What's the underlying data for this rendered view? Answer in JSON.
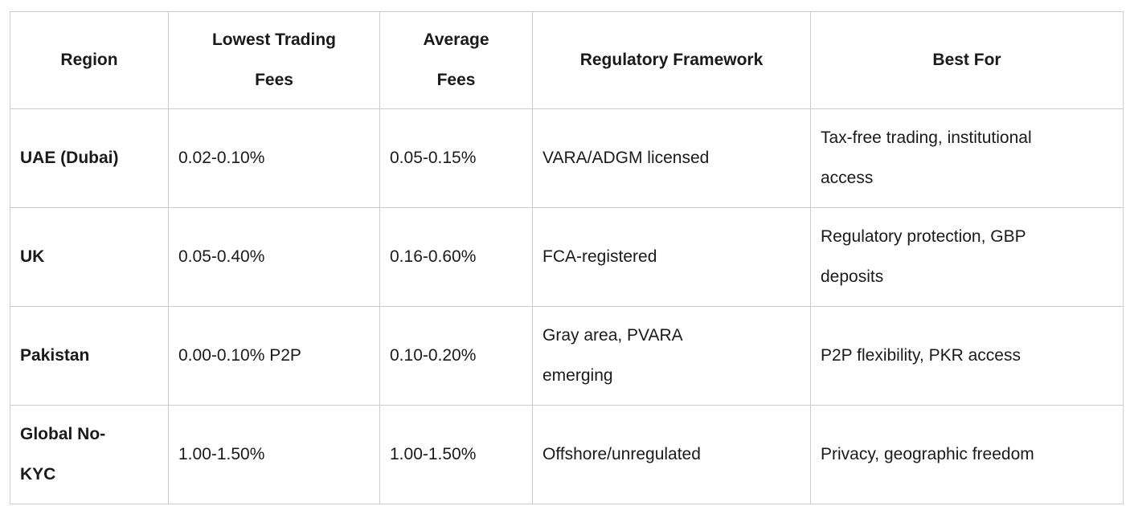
{
  "colors": {
    "background": "#ffffff",
    "border": "#cccccc",
    "text": "#1a1a1a"
  },
  "table": {
    "headers": [
      "Region",
      "Lowest Trading\nFees",
      "Average\nFees",
      "Regulatory Framework",
      "Best For"
    ],
    "rows": [
      {
        "cells": [
          "UAE (Dubai)",
          "0.02-0.10%",
          "0.05-0.15%",
          "VARA/ADGM licensed",
          "Tax-free trading, institutional\naccess"
        ]
      },
      {
        "cells": [
          "UK",
          "0.05-0.40%",
          "0.16-0.60%",
          "FCA-registered",
          "Regulatory protection, GBP\ndeposits"
        ]
      },
      {
        "cells": [
          "Pakistan",
          "0.00-0.10% P2P",
          "0.10-0.20%",
          "Gray area, PVARA\nemerging",
          "P2P flexibility, PKR access"
        ]
      },
      {
        "cells": [
          "Global No-\nKYC",
          "1.00-1.50%",
          "1.00-1.50%",
          "Offshore/unregulated",
          "Privacy, geographic freedom"
        ]
      }
    ]
  }
}
